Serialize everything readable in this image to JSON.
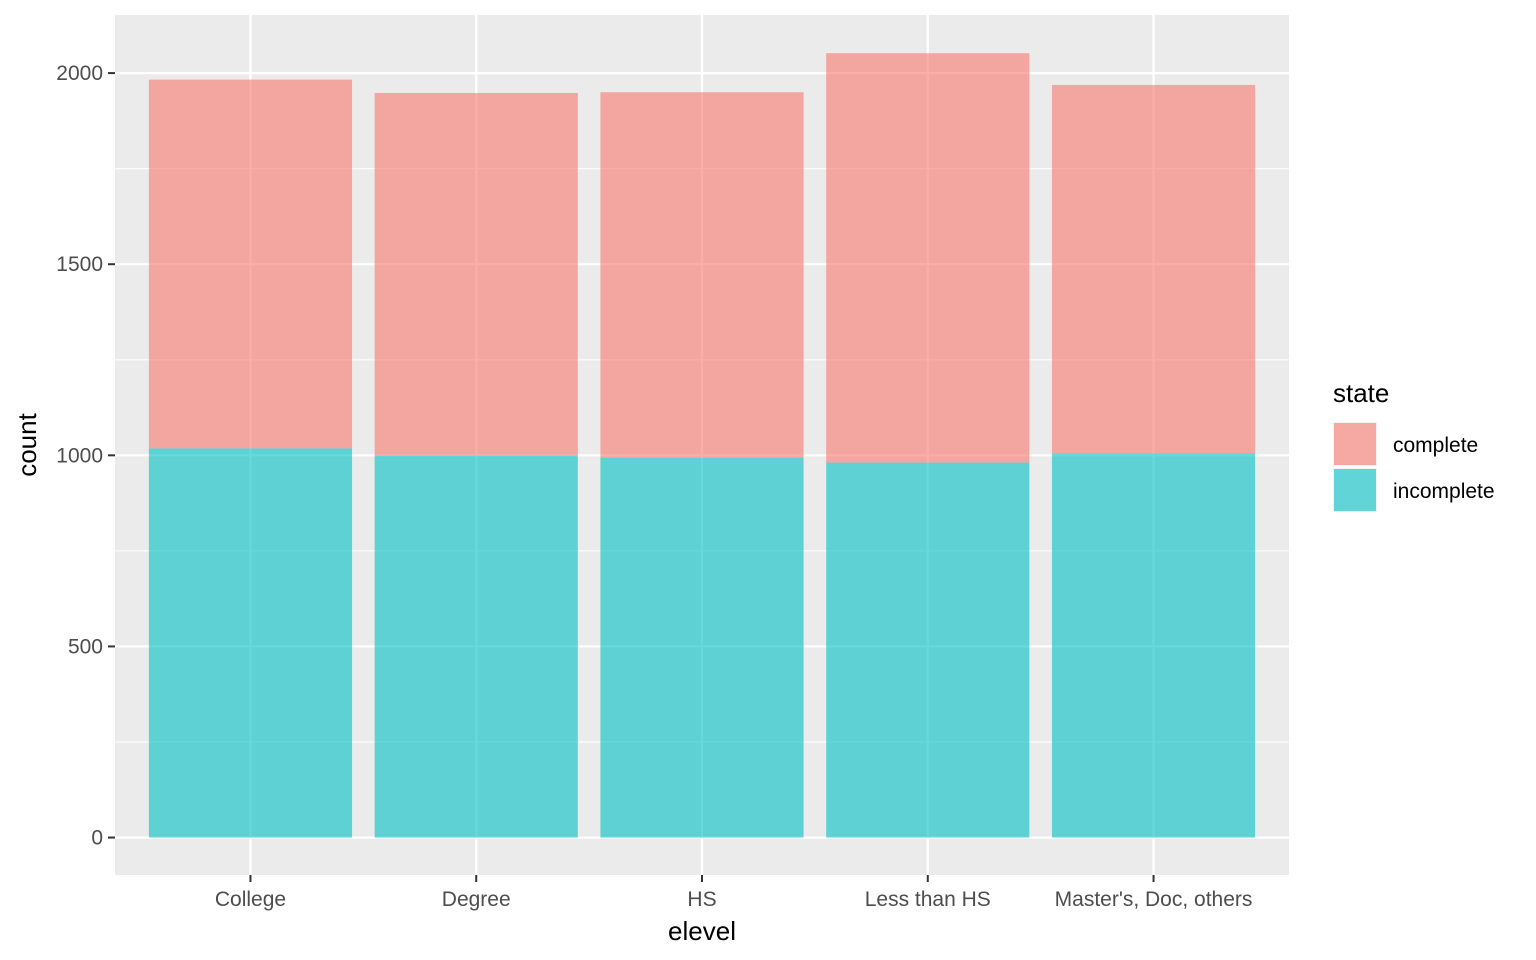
{
  "chart_data": {
    "type": "bar",
    "stacked": true,
    "title": "",
    "xlabel": "elevel",
    "ylabel": "count",
    "categories": [
      "College",
      "Degree",
      "HS",
      "Less than HS",
      "Master's, Doc, others"
    ],
    "series": [
      {
        "name": "incomplete",
        "color": "#00bfc4",
        "values": [
          1018,
          1000,
          993,
          981,
          1005
        ]
      },
      {
        "name": "complete",
        "color": "#f8766d",
        "values": [
          965,
          948,
          957,
          1071,
          964
        ]
      }
    ],
    "ylim": [
      -98,
      2152
    ],
    "yticks": [
      0,
      500,
      1000,
      1500,
      2000
    ],
    "ytick_labels": [
      "0",
      "500",
      "1000",
      "1500",
      "2000"
    ],
    "grid": true,
    "bar_opacity": 0.6,
    "panel_background": "#ebebeb",
    "grid_color": "#ffffff",
    "legend": {
      "title": "state",
      "position": "right",
      "entries": [
        "complete",
        "incomplete"
      ]
    }
  }
}
